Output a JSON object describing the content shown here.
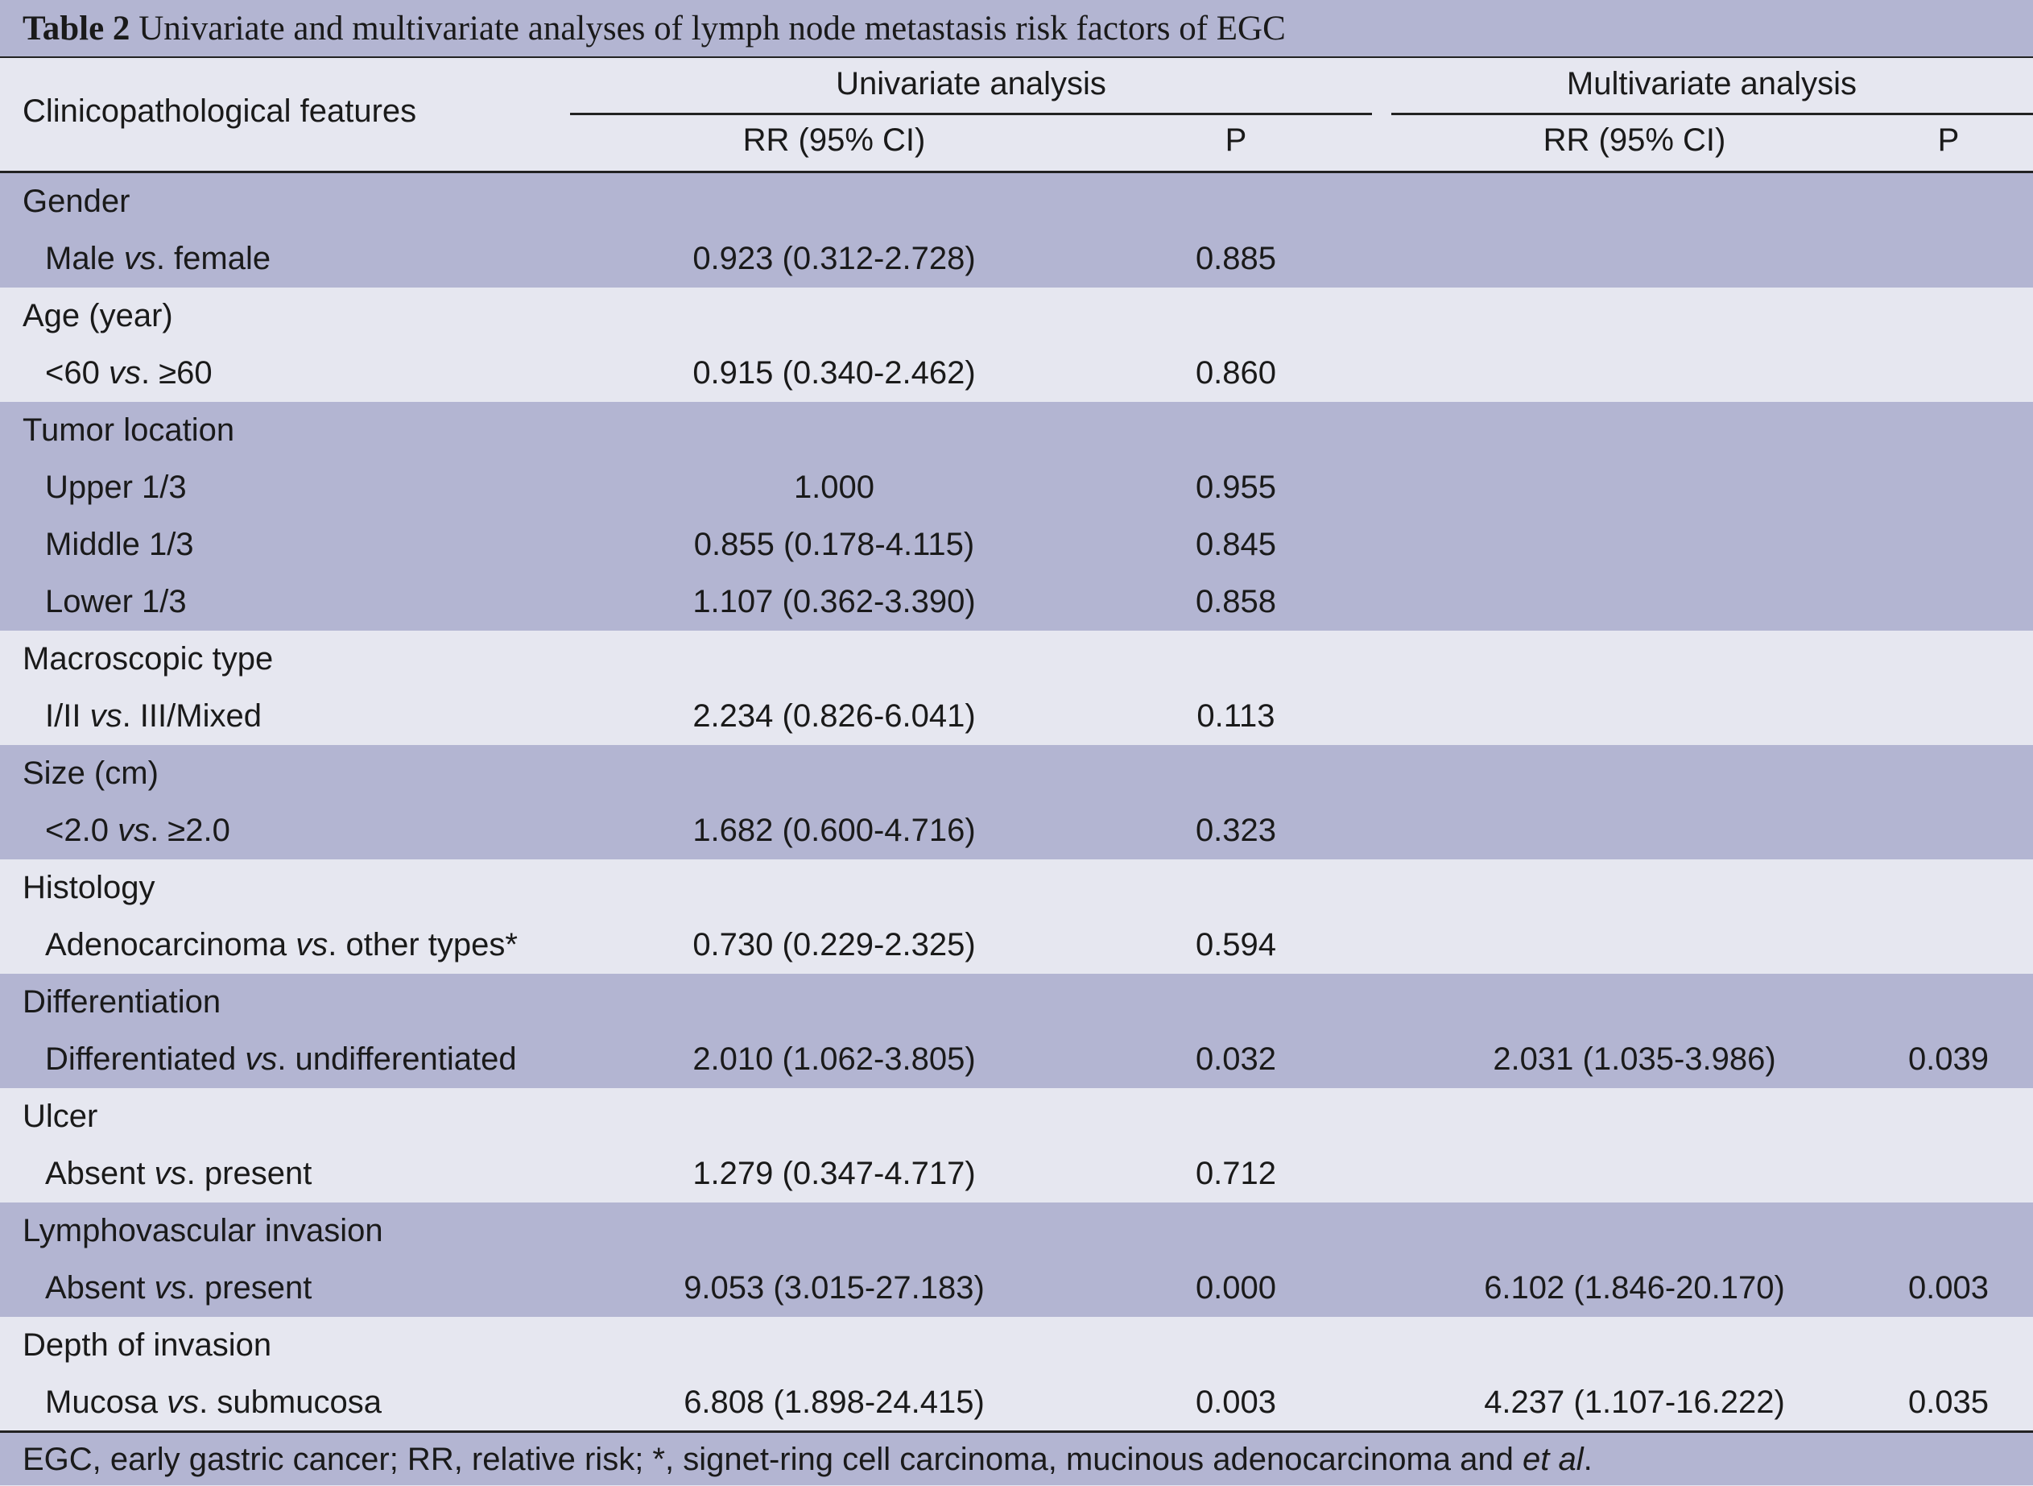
{
  "caption": {
    "number": "Table 2",
    "title": "Univariate and multivariate analyses of lymph node metastasis risk factors of EGC"
  },
  "header": {
    "features": "Clinicopathological features",
    "univariate": "Univariate analysis",
    "multivariate": "Multivariate analysis",
    "rr": "RR (95% CI)",
    "p": "P"
  },
  "groups": [
    {
      "title": "Gender",
      "rows": [
        {
          "a": "Male ",
          "vs": "vs",
          "b": ". female",
          "uni_rr": "0.923 (0.312-2.728)",
          "uni_p": "0.885",
          "mul_rr": "",
          "mul_p": ""
        }
      ]
    },
    {
      "title": "Age (year)",
      "rows": [
        {
          "a": "<60 ",
          "vs": "vs",
          "b": ". ≥60",
          "uni_rr": "0.915 (0.340-2.462)",
          "uni_p": "0.860",
          "mul_rr": "",
          "mul_p": ""
        }
      ]
    },
    {
      "title": "Tumor location",
      "rows": [
        {
          "a": "Upper 1/3",
          "vs": "",
          "b": "",
          "uni_rr": "1.000",
          "uni_p": "0.955",
          "mul_rr": "",
          "mul_p": ""
        },
        {
          "a": "Middle 1/3",
          "vs": "",
          "b": "",
          "uni_rr": "0.855 (0.178-4.115)",
          "uni_p": "0.845",
          "mul_rr": "",
          "mul_p": ""
        },
        {
          "a": "Lower 1/3",
          "vs": "",
          "b": "",
          "uni_rr": "1.107 (0.362-3.390)",
          "uni_p": "0.858",
          "mul_rr": "",
          "mul_p": ""
        }
      ]
    },
    {
      "title": "Macroscopic type",
      "rows": [
        {
          "a": "I/II ",
          "vs": "vs",
          "b": ". III/Mixed",
          "uni_rr": "2.234 (0.826-6.041)",
          "uni_p": "0.113",
          "mul_rr": "",
          "mul_p": ""
        }
      ]
    },
    {
      "title": "Size (cm)",
      "rows": [
        {
          "a": "<2.0 ",
          "vs": "vs",
          "b": ". ≥2.0",
          "uni_rr": "1.682 (0.600-4.716)",
          "uni_p": "0.323",
          "mul_rr": "",
          "mul_p": ""
        }
      ]
    },
    {
      "title": "Histology",
      "rows": [
        {
          "a": "Adenocarcinoma ",
          "vs": "vs",
          "b": ". other types*",
          "uni_rr": "0.730 (0.229-2.325)",
          "uni_p": "0.594",
          "mul_rr": "",
          "mul_p": ""
        }
      ]
    },
    {
      "title": "Differentiation",
      "rows": [
        {
          "a": "Differentiated ",
          "vs": "vs",
          "b": ". undifferentiated",
          "uni_rr": "2.010 (1.062-3.805)",
          "uni_p": "0.032",
          "mul_rr": "2.031 (1.035-3.986)",
          "mul_p": "0.039"
        }
      ]
    },
    {
      "title": "Ulcer",
      "rows": [
        {
          "a": "Absent ",
          "vs": "vs",
          "b": ". present",
          "uni_rr": "1.279 (0.347-4.717)",
          "uni_p": "0.712",
          "mul_rr": "",
          "mul_p": ""
        }
      ]
    },
    {
      "title": "Lymphovascular invasion",
      "rows": [
        {
          "a": "Absent ",
          "vs": "vs",
          "b": ". present",
          "uni_rr": "9.053 (3.015-27.183)",
          "uni_p": "0.000",
          "mul_rr": "6.102 (1.846-20.170)",
          "mul_p": "0.003"
        }
      ]
    },
    {
      "title": "Depth of invasion",
      "rows": [
        {
          "a": "Mucosa ",
          "vs": "vs",
          "b": ". submucosa",
          "uni_rr": "6.808 (1.898-24.415)",
          "uni_p": "0.003",
          "mul_rr": "4.237 (1.107-16.222)",
          "mul_p": "0.035"
        }
      ]
    }
  ],
  "footer": {
    "text": "EGC, early gastric cancer; RR, relative risk; *, signet-ring cell carcinoma, mucinous adenocarcinoma and ",
    "etal": "et al",
    "end": "."
  }
}
